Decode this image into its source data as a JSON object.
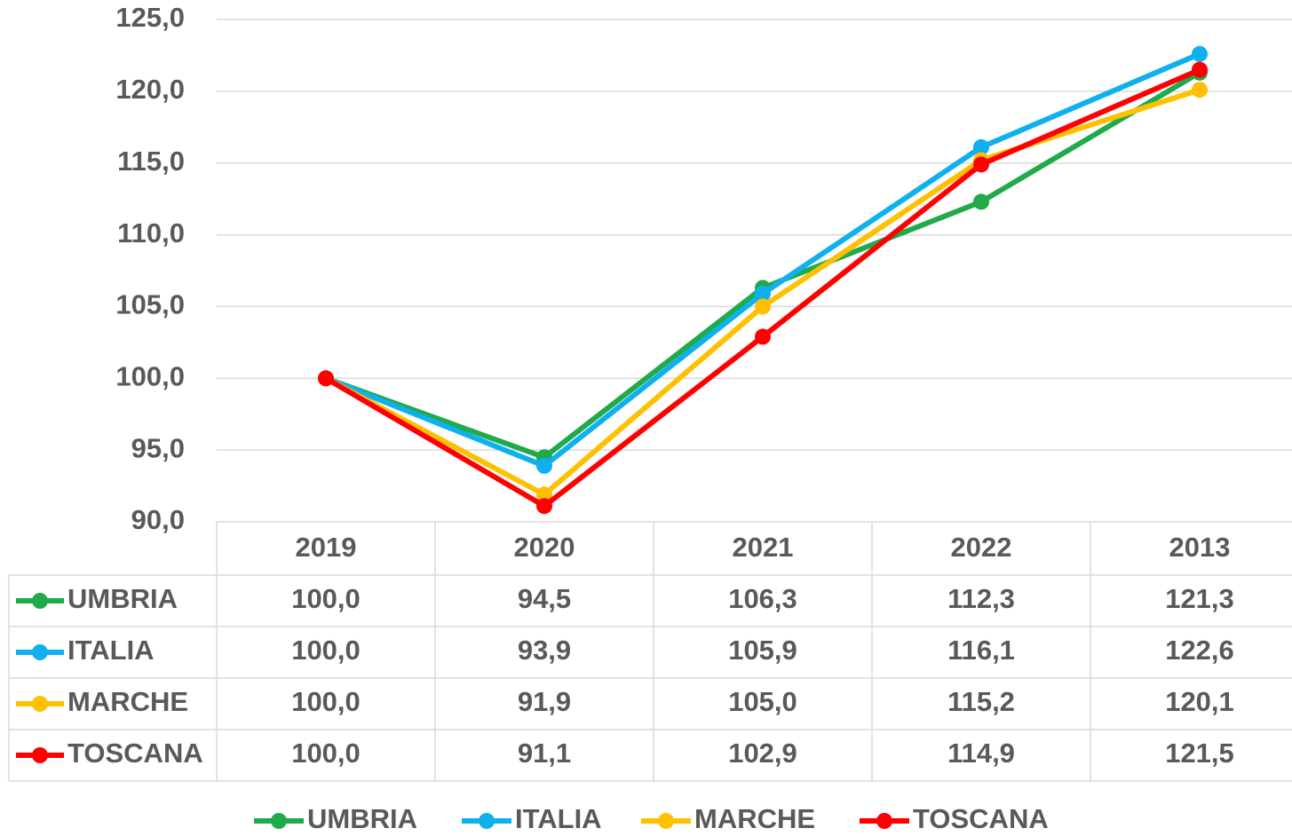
{
  "chart_data": {
    "type": "line",
    "categories": [
      "2019",
      "2020",
      "2021",
      "2022",
      "2013"
    ],
    "series": [
      {
        "name": "UMBRIA",
        "color": "#1faa4b",
        "values": [
          100.0,
          94.5,
          106.3,
          112.3,
          121.3
        ],
        "value_labels": [
          "100,0",
          "94,5",
          "106,3",
          "112,3",
          "121,3"
        ]
      },
      {
        "name": "ITALIA",
        "color": "#0fb0ee",
        "values": [
          100.0,
          93.9,
          105.9,
          116.1,
          122.6
        ],
        "value_labels": [
          "100,0",
          "93,9",
          "105,9",
          "116,1",
          "122,6"
        ]
      },
      {
        "name": "MARCHE",
        "color": "#ffc000",
        "values": [
          100.0,
          91.9,
          105.0,
          115.2,
          120.1
        ],
        "value_labels": [
          "100,0",
          "91,9",
          "105,0",
          "115,2",
          "120,1"
        ]
      },
      {
        "name": "TOSCANA",
        "color": "#ff0000",
        "values": [
          100.0,
          91.1,
          102.9,
          114.9,
          121.5
        ],
        "value_labels": [
          "100,0",
          "91,1",
          "102,9",
          "114,9",
          "121,5"
        ]
      }
    ],
    "ylim": [
      90,
      125
    ],
    "yticks": [
      {
        "value": 90,
        "label": "90,0"
      },
      {
        "value": 95,
        "label": "95,0"
      },
      {
        "value": 100,
        "label": "100,0"
      },
      {
        "value": 105,
        "label": "105,0"
      },
      {
        "value": 110,
        "label": "110,0"
      },
      {
        "value": 115,
        "label": "115,0"
      },
      {
        "value": 120,
        "label": "120,0"
      },
      {
        "value": 125,
        "label": "125,0"
      }
    ],
    "grid": true,
    "legend": "bottom"
  }
}
